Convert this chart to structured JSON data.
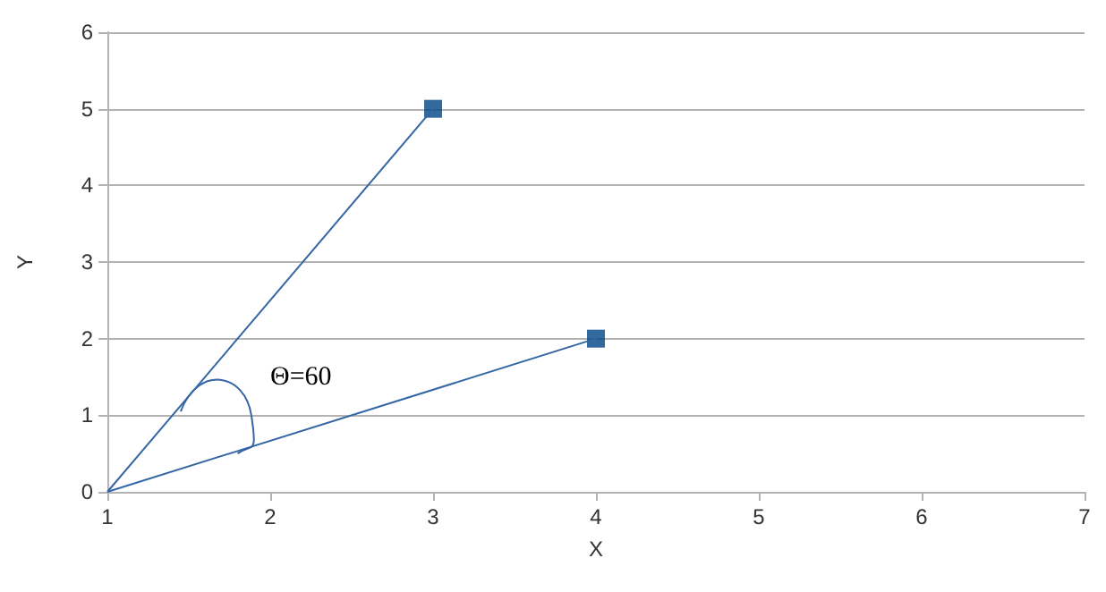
{
  "chart_data": {
    "type": "line",
    "xlabel": "X",
    "ylabel": "Y",
    "series": [
      {
        "color": "#3465a4",
        "x": [
          1,
          3
        ],
        "values": [
          0,
          5
        ],
        "marker": "none"
      },
      {
        "color": "#3465a4",
        "x": [
          1,
          4
        ],
        "values": [
          0,
          2
        ],
        "marker": "none"
      },
      {
        "type": "scatter",
        "color": "#004586",
        "x": [
          3,
          4
        ],
        "values": [
          5,
          2
        ],
        "marker": "square"
      }
    ],
    "annotations": [
      "Θ=60"
    ],
    "xlim": [
      1,
      7
    ],
    "xticks": [
      1,
      2,
      3,
      4,
      5,
      6,
      7
    ],
    "ylim": [
      0,
      6
    ],
    "yticks": [
      0,
      1,
      2,
      3,
      4,
      5,
      6
    ],
    "grid": "y"
  }
}
